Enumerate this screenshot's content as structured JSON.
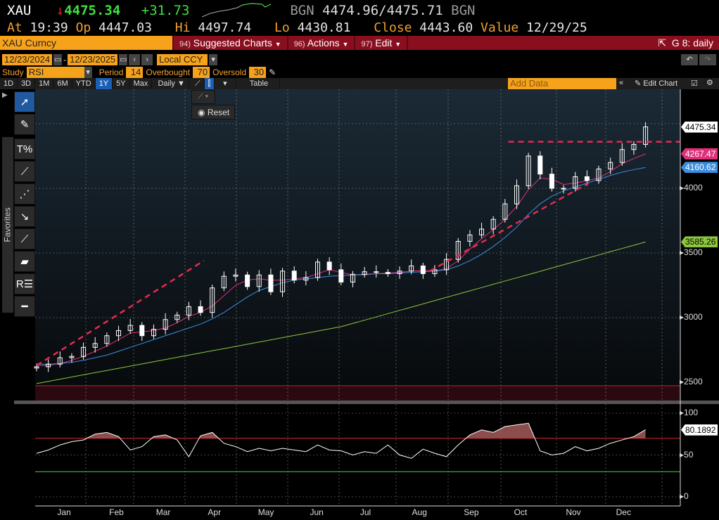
{
  "header": {
    "ticker": "XAU",
    "arrow": "↓",
    "last": "4475.34",
    "change": "+31.73",
    "bid_label": "BGN",
    "bid": "4474.96",
    "ask": "4475.71",
    "ask_label": "BGN",
    "at_label": "At",
    "at": "19:39",
    "op_label": "Op",
    "op": "4447.03",
    "hi_label": "Hi",
    "hi": "4497.74",
    "lo_label": "Lo",
    "lo": "4430.81",
    "close_label": "Close",
    "close": "4443.60",
    "value_label": "Value",
    "value": "12/29/25"
  },
  "menubar": {
    "security": "XAU Curncy",
    "items": [
      {
        "num": "94)",
        "label": "Suggested Charts"
      },
      {
        "num": "96)",
        "label": "Actions"
      },
      {
        "num": "97)",
        "label": "Edit"
      }
    ],
    "chart_id": "G 8: daily"
  },
  "controls": {
    "start_date": "12/23/2024",
    "end_date": "12/23/2025",
    "sep": "-",
    "currency": "Local CCY",
    "study_label": "Study",
    "study": "RSI",
    "period_label": "Period",
    "period": "14",
    "overbought_label": "Overbought",
    "overbought": "70",
    "oversold_label": "Oversold",
    "oversold": "30"
  },
  "periods": [
    "1D",
    "3D",
    "1M",
    "6M",
    "YTD",
    "1Y",
    "5Y",
    "Max"
  ],
  "active_period": "1Y",
  "frequency": "Daily ▼",
  "table_label": "Table",
  "add_data_placeholder": "Add Data",
  "edit_chart": "Edit Chart",
  "reset_label": "Reset",
  "favorites_label": "Favorites",
  "tools": [
    "pointer-icon",
    "pencil-icon",
    "fibonacci-percent-icon",
    "trendline-icon",
    "multi-point-line-icon",
    "arrow-icon",
    "segment-icon",
    "channel-icon",
    "retracement-icon",
    "horizontal-line-icon"
  ],
  "colors": {
    "price": "#ffffff",
    "ma_pink": "#e0307a",
    "ma_blue": "#3c8fe0",
    "ma_green": "#8cc63f",
    "trendline": "#e8294f",
    "overbought": "#c0202a",
    "oversold": "#3cc03c",
    "accent": "#f7a21b",
    "menubar": "#8a0f1e"
  },
  "chart_data": [
    {
      "type": "line",
      "subtype": "candlestick-with-moving-averages",
      "x_start": "2024-12-23",
      "x_step": "1 week",
      "dates": [
        "12/23/24",
        "12/30/24",
        "1/6",
        "1/13",
        "1/20",
        "1/27",
        "2/3",
        "2/10",
        "2/17",
        "2/24",
        "3/3",
        "3/10",
        "3/17",
        "3/24",
        "3/31",
        "4/7",
        "4/14",
        "4/21",
        "4/28",
        "5/5",
        "5/12",
        "5/19",
        "5/26",
        "6/2",
        "6/9",
        "6/16",
        "6/23",
        "6/30",
        "7/7",
        "7/14",
        "7/21",
        "7/28",
        "8/4",
        "8/11",
        "8/18",
        "8/25",
        "9/1",
        "9/8",
        "9/15",
        "9/22",
        "9/29",
        "10/6",
        "10/13",
        "10/20",
        "10/27",
        "11/3",
        "11/10",
        "11/17",
        "11/24",
        "12/1",
        "12/8",
        "12/15",
        "12/22"
      ],
      "series": [
        {
          "key": "price",
          "values": [
            2620,
            2640,
            2690,
            2700,
            2770,
            2800,
            2860,
            2900,
            2940,
            2860,
            2910,
            2985,
            3020,
            3085,
            3040,
            3230,
            3320,
            3330,
            3240,
            3330,
            3200,
            3360,
            3290,
            3310,
            3430,
            3370,
            3275,
            3335,
            3355,
            3350,
            3340,
            3360,
            3400,
            3340,
            3370,
            3450,
            3590,
            3640,
            3685,
            3760,
            3880,
            4020,
            4250,
            4110,
            4000,
            4000,
            4090,
            4060,
            4150,
            4200,
            4300,
            4340,
            4475
          ]
        },
        {
          "key": "ma_pink",
          "last_label": "4267.47",
          "values": [
            2630,
            2630,
            2645,
            2670,
            2700,
            2740,
            2780,
            2830,
            2880,
            2890,
            2900,
            2920,
            2960,
            3010,
            3040,
            3090,
            3170,
            3250,
            3290,
            3300,
            3290,
            3290,
            3300,
            3310,
            3340,
            3370,
            3350,
            3330,
            3330,
            3340,
            3345,
            3350,
            3360,
            3365,
            3360,
            3380,
            3440,
            3530,
            3610,
            3680,
            3760,
            3860,
            3990,
            4080,
            4070,
            4030,
            4040,
            4060,
            4080,
            4130,
            4190,
            4230,
            4267
          ]
        },
        {
          "key": "ma_blue",
          "last_label": "4160.62",
          "values": [
            2640,
            2640,
            2645,
            2655,
            2670,
            2690,
            2710,
            2740,
            2770,
            2800,
            2830,
            2860,
            2890,
            2920,
            2950,
            2990,
            3040,
            3100,
            3160,
            3210,
            3240,
            3270,
            3290,
            3300,
            3310,
            3320,
            3325,
            3330,
            3335,
            3340,
            3340,
            3345,
            3350,
            3355,
            3360,
            3370,
            3400,
            3440,
            3490,
            3550,
            3620,
            3700,
            3800,
            3880,
            3940,
            3980,
            4010,
            4040,
            4070,
            4100,
            4125,
            4145,
            4161
          ]
        },
        {
          "key": "ma_green",
          "last_label": "3585.26",
          "values": [
            2490,
            2507,
            2524,
            2541,
            2558,
            2575,
            2591,
            2608,
            2625,
            2642,
            2659,
            2676,
            2693,
            2710,
            2727,
            2744,
            2760,
            2777,
            2794,
            2811,
            2828,
            2845,
            2862,
            2879,
            2896,
            2913,
            2930,
            2955,
            2980,
            3005,
            3031,
            3056,
            3081,
            3106,
            3132,
            3157,
            3182,
            3207,
            3232,
            3258,
            3283,
            3308,
            3333,
            3358,
            3384,
            3409,
            3434,
            3459,
            3484,
            3510,
            3535,
            3560,
            3585
          ]
        }
      ],
      "last_price_label": "4475.34",
      "yticks": [
        "2500",
        "3000",
        "3500",
        "4000"
      ],
      "ylim": [
        2390,
        4780
      ],
      "annotations": [
        {
          "type": "dashed-trendline",
          "from": [
            "2024-12-23",
            2630
          ],
          "to": [
            "2025-04-02",
            3440
          ]
        },
        {
          "type": "dashed-trendline",
          "from": [
            "2025-08-15",
            3360
          ],
          "to": [
            "2025-11-18",
            4040
          ]
        },
        {
          "type": "dashed-horizontal",
          "from": [
            "2025-10-01",
            4360
          ],
          "to": [
            "2025-12-31",
            4360
          ]
        }
      ],
      "grid": true
    },
    {
      "type": "line",
      "title": "",
      "series": [
        {
          "key": "rsi",
          "last_label": "80.1892",
          "values": [
            52,
            56,
            62,
            66,
            68,
            75,
            77,
            72,
            56,
            60,
            72,
            74,
            68,
            48,
            73,
            77,
            64,
            60,
            54,
            58,
            55,
            58,
            56,
            54,
            62,
            56,
            55,
            50,
            54,
            52,
            62,
            50,
            46,
            57,
            52,
            48,
            62,
            74,
            80,
            77,
            84,
            86,
            88,
            55,
            50,
            52,
            60,
            55,
            58,
            64,
            68,
            72,
            80.19
          ]
        }
      ],
      "yticks": [
        "0",
        "50",
        "100"
      ],
      "ylim": [
        0,
        100
      ],
      "overbought": 70,
      "oversold": 30,
      "grid": true
    }
  ],
  "xticks": [
    "Jan",
    "Feb",
    "Mar",
    "Apr",
    "May",
    "Jun",
    "Jul",
    "Aug",
    "Sep",
    "Oct",
    "Nov",
    "Dec"
  ]
}
